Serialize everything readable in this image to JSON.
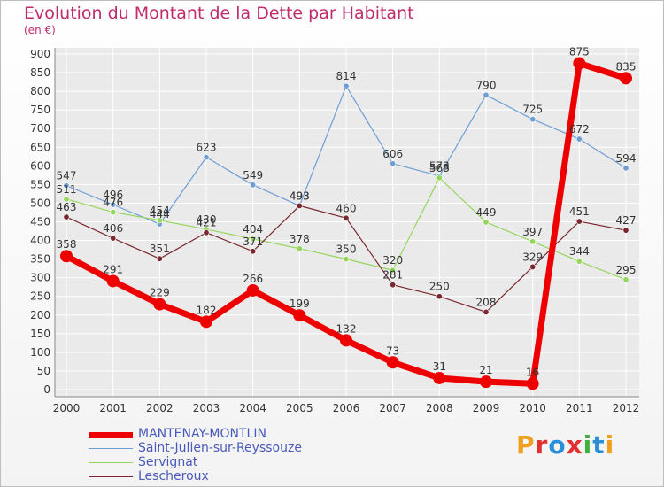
{
  "header": {
    "title": "Evolution du Montant de la Dette par Habitant",
    "unit": "(en €)"
  },
  "logo": {
    "text": "Proxiti",
    "colors": [
      "#f0a020",
      "#e03030",
      "#2a8fd8",
      "#e03030",
      "#40b040",
      "#2a8fd8",
      "#f0a020"
    ]
  },
  "colors": {
    "axis": "#888888",
    "grid": "#ffffff",
    "text": "#333333"
  },
  "chart_data": {
    "type": "line",
    "categories": [
      "2000",
      "2001",
      "2002",
      "2003",
      "2004",
      "2005",
      "2006",
      "2007",
      "2008",
      "2009",
      "2010",
      "2011",
      "2012"
    ],
    "ylim": [
      0,
      900
    ],
    "yticks": [
      0,
      50,
      100,
      150,
      200,
      250,
      300,
      350,
      400,
      450,
      500,
      550,
      600,
      650,
      700,
      750,
      800,
      850,
      900
    ],
    "series": [
      {
        "name": "MANTENAY-MONTLIN",
        "color": "#ee0000",
        "width": 7,
        "marker": 7,
        "values": [
          358,
          291,
          229,
          182,
          266,
          199,
          132,
          73,
          31,
          21,
          16,
          875,
          835
        ]
      },
      {
        "name": "Saint-Julien-sur-Reyssouze",
        "color": "#6e9ed4",
        "width": 1.2,
        "marker": 3.2,
        "values": [
          547,
          496,
          444,
          623,
          549,
          493,
          814,
          606,
          573,
          790,
          725,
          672,
          594
        ]
      },
      {
        "name": "Servignat",
        "color": "#94d65c",
        "width": 1.2,
        "marker": 3.2,
        "values": [
          511,
          476,
          454,
          430,
          404,
          378,
          350,
          320,
          568,
          449,
          397,
          344,
          295
        ]
      },
      {
        "name": "Lescheroux",
        "color": "#7a2830",
        "width": 1.2,
        "marker": 3.2,
        "values": [
          463,
          406,
          351,
          421,
          371,
          493,
          460,
          281,
          250,
          208,
          329,
          451,
          427
        ]
      }
    ]
  }
}
